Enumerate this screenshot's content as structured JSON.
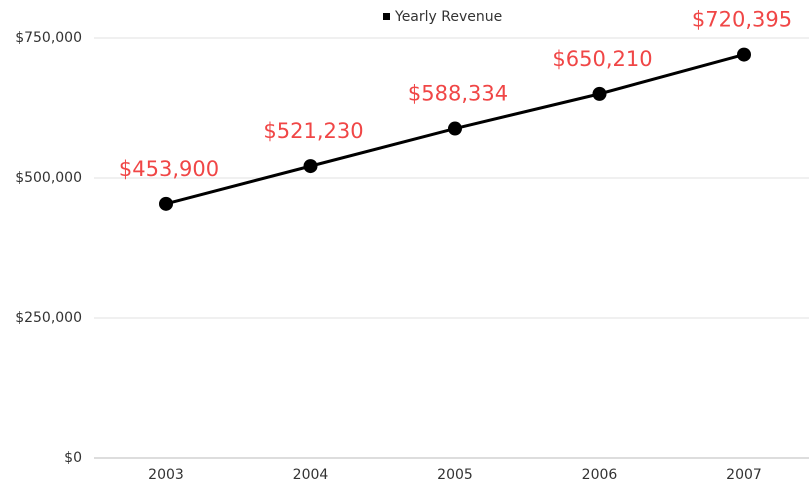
{
  "chart_data": {
    "type": "line",
    "categories": [
      "2003",
      "2004",
      "2005",
      "2006",
      "2007"
    ],
    "series": [
      {
        "name": "Yearly Revenue",
        "color": "#000000",
        "values": [
          453900,
          521230,
          588334,
          650210,
          720395
        ],
        "value_labels": [
          "$453,900",
          "$521,230",
          "$588,334",
          "$650,210",
          "$720,395"
        ],
        "label_color": "#f04646"
      }
    ],
    "ylim": [
      0,
      750000
    ],
    "yticks": [
      {
        "value": 0,
        "label": "$0"
      },
      {
        "value": 250000,
        "label": "$250,000"
      },
      {
        "value": 500000,
        "label": "$500,000"
      },
      {
        "value": 750000,
        "label": "$750,000"
      }
    ],
    "grid": true,
    "legend": "top"
  }
}
